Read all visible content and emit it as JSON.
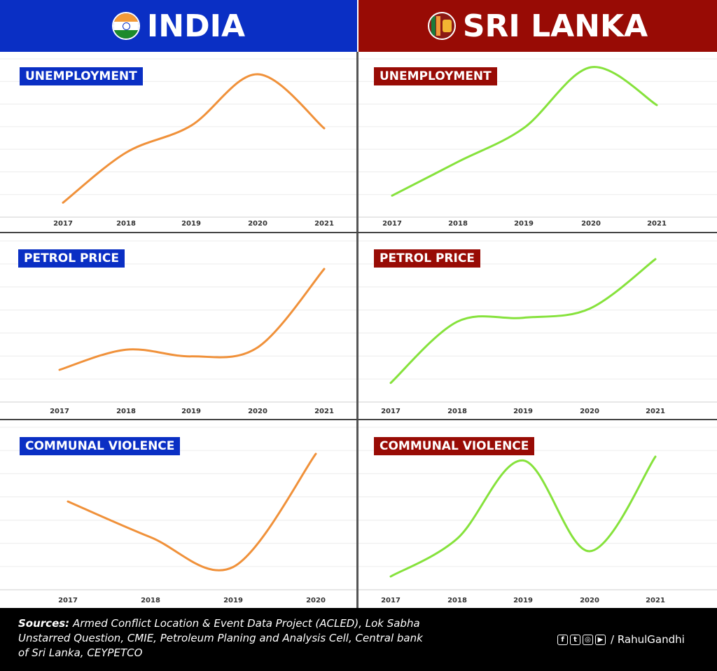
{
  "header": {
    "left_title": "INDIA",
    "right_title": "SRI LANKA",
    "left_color": "#0a2fc4",
    "right_color": "#980b05"
  },
  "chart_data": [
    {
      "id": "india-unemployment",
      "type": "line",
      "title": "UNEMPLOYMENT",
      "country": "India",
      "x": [
        "2017",
        "2018",
        "2019",
        "2020",
        "2021"
      ],
      "values": [
        0.05,
        0.42,
        0.62,
        1.0,
        0.6
      ],
      "line_color": "#f0913a",
      "grid": true
    },
    {
      "id": "lanka-unemployment",
      "type": "line",
      "title": "UNEMPLOYMENT",
      "country": "Sri Lanka",
      "x": [
        "2017",
        "2018",
        "2019",
        "2020",
        "2021"
      ],
      "values": [
        0.05,
        0.3,
        0.55,
        1.0,
        0.72
      ],
      "line_color": "#86e23c",
      "grid": true
    },
    {
      "id": "india-petrol",
      "type": "line",
      "title": "PETROL PRICE",
      "country": "India",
      "x": [
        "2017",
        "2018",
        "2019",
        "2020",
        "2021"
      ],
      "values": [
        0.1,
        0.28,
        0.22,
        0.3,
        1.0
      ],
      "line_color": "#f0913a",
      "grid": true
    },
    {
      "id": "lanka-petrol",
      "type": "line",
      "title": "PETROL PRICE",
      "country": "Sri Lanka",
      "x": [
        "2017",
        "2018",
        "2019",
        "2020",
        "2021"
      ],
      "values": [
        0.05,
        0.52,
        0.55,
        0.62,
        1.0
      ],
      "line_color": "#86e23c",
      "grid": true
    },
    {
      "id": "india-communal",
      "type": "line",
      "title": "COMMUNAL VIOLENCE",
      "country": "India",
      "x": [
        "2017",
        "2018",
        "2019",
        "2020"
      ],
      "values": [
        0.6,
        0.3,
        0.05,
        1.0
      ],
      "line_color": "#f0913a",
      "grid": true
    },
    {
      "id": "lanka-communal",
      "type": "line",
      "title": "COMMUNAL VIOLENCE",
      "country": "Sri Lanka",
      "x": [
        "2017",
        "2018",
        "2019",
        "2020",
        "2021"
      ],
      "values": [
        0.05,
        0.35,
        0.97,
        0.25,
        1.0
      ],
      "line_color": "#86e23c",
      "grid": true
    }
  ],
  "footer": {
    "sources_label": "Sources:",
    "sources_text": " Armed Conflict Location & Event Data Project (ACLED), Lok Sabha Unstarred Question, CMIE, Petroleum Planing and Analysis Cell, Central bank of Sri Lanka, CEYPETCO",
    "icons": [
      "facebook-icon",
      "twitter-icon",
      "instagram-icon",
      "youtube-icon"
    ],
    "handle": "/ RahulGandhi"
  }
}
